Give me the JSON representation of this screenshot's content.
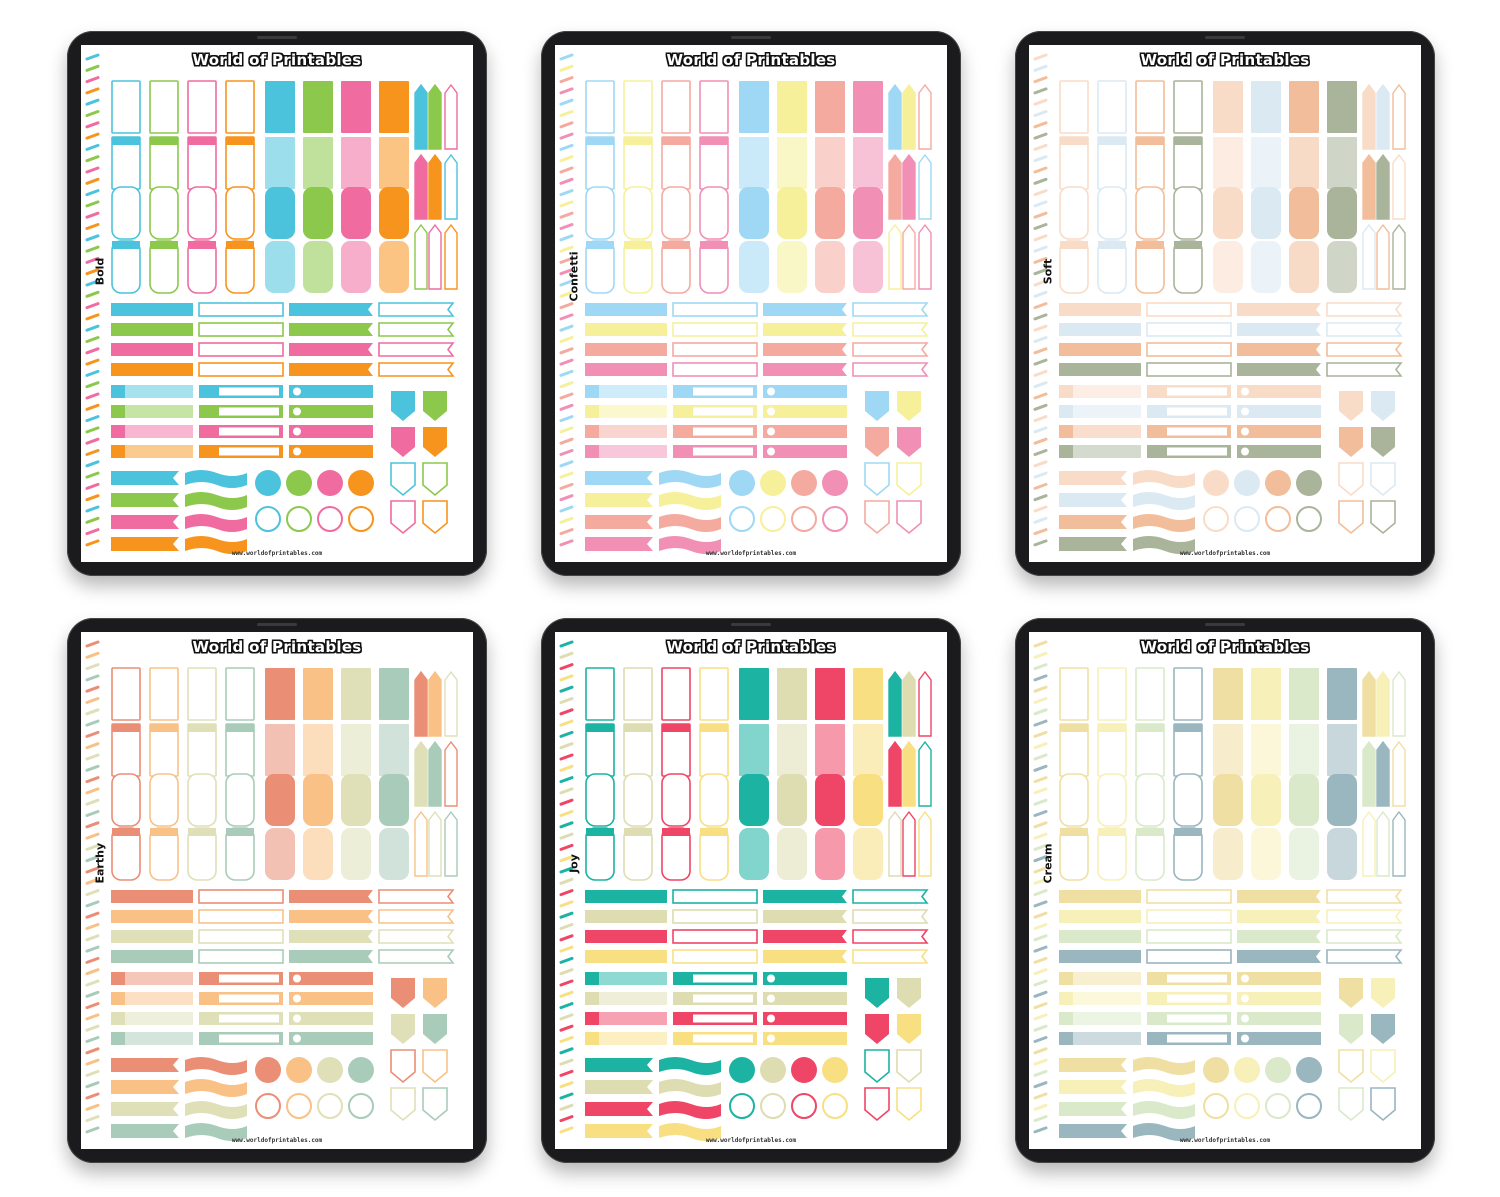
{
  "sheets": [
    {
      "brand": "World of Printables",
      "name": "Bold",
      "url": "www.worldofprintables.com",
      "colors": [
        "#4cc3dc",
        "#8cc84b",
        "#f06ca0",
        "#f7941d"
      ]
    },
    {
      "brand": "World of Printables",
      "name": "Confetti",
      "url": "www.worldofprintables.com",
      "colors": [
        "#9fd8f5",
        "#f6f09a",
        "#f5aaa0",
        "#f18fb5"
      ]
    },
    {
      "brand": "World of Printables",
      "name": "Soft",
      "url": "www.worldofprintables.com",
      "colors": [
        "#f9dcc8",
        "#dbe9f3",
        "#f2bd9a",
        "#a9b49a"
      ]
    },
    {
      "brand": "World of Printables",
      "name": "Earthy",
      "url": "www.worldofprintables.com",
      "colors": [
        "#ea8e76",
        "#f9c186",
        "#dfe0b8",
        "#a9cbb9"
      ]
    },
    {
      "brand": "World of Printables",
      "name": "Joy",
      "url": "www.worldofprintables.com",
      "colors": [
        "#1cb3a3",
        "#dedcb1",
        "#ef4566",
        "#f8df82"
      ]
    },
    {
      "brand": "World of Printables",
      "name": "Cream",
      "url": "www.worldofprintables.com",
      "colors": [
        "#f0dfa2",
        "#f7f0b8",
        "#d9e9c9",
        "#9ab6bf"
      ]
    }
  ]
}
